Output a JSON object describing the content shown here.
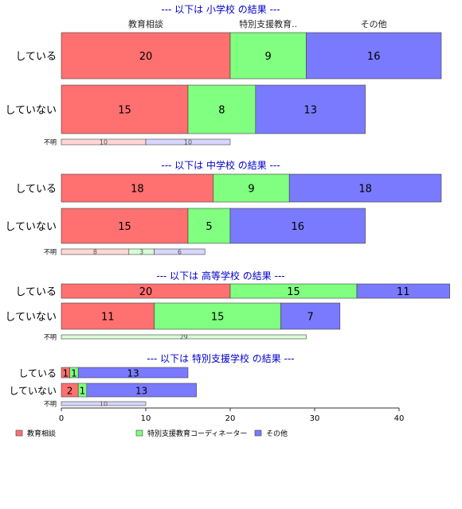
{
  "chart_data": {
    "type": "bar",
    "orientation": "horizontal",
    "stacked": true,
    "xlim": [
      0,
      40
    ],
    "x_ticks": [
      "0",
      "10",
      "20",
      "30",
      "40"
    ],
    "column_headers": [
      "教育相談",
      "特別支援教育..",
      "その他"
    ],
    "legend": {
      "placement": "bottom",
      "entries": [
        {
          "name": "教育相談",
          "color": "#ff7070"
        },
        {
          "name": "特別支援教育コーディネーター",
          "color": "#80ff80"
        },
        {
          "name": "その他",
          "color": "#7a7aff"
        }
      ]
    },
    "colors": {
      "light": [
        "#ffd6d6",
        "#d6ffd6",
        "#d6d6ff"
      ],
      "title": "#0000cc",
      "border": "#404040"
    },
    "panels": [
      {
        "title": "--- 以下は 小学校 の結果 ---",
        "rows": [
          {
            "label": "している",
            "values": [
              20,
              9,
              16
            ]
          },
          {
            "label": "していない",
            "values": [
              15,
              8,
              13
            ]
          },
          {
            "label": "不明",
            "values": [
              10,
              0,
              10
            ]
          }
        ]
      },
      {
        "title": "--- 以下は 中学校 の結果 ---",
        "rows": [
          {
            "label": "している",
            "values": [
              18,
              9,
              18
            ]
          },
          {
            "label": "していない",
            "values": [
              15,
              5,
              16
            ]
          },
          {
            "label": "不明",
            "values": [
              8,
              3,
              6
            ]
          }
        ]
      },
      {
        "title": "--- 以下は 高等学校 の結果 ---",
        "rows": [
          {
            "label": "している",
            "values": [
              20,
              15,
              11
            ]
          },
          {
            "label": "していない",
            "values": [
              11,
              15,
              7
            ]
          },
          {
            "label": "不明",
            "values": [
              0,
              29,
              0
            ]
          }
        ]
      },
      {
        "title": "--- 以下は 特別支援学校 の結果 ---",
        "rows": [
          {
            "label": "している",
            "values": [
              1,
              1,
              13
            ]
          },
          {
            "label": "していない",
            "values": [
              2,
              1,
              13
            ]
          },
          {
            "label": "不明",
            "values": [
              0,
              0,
              10
            ]
          }
        ]
      }
    ]
  }
}
